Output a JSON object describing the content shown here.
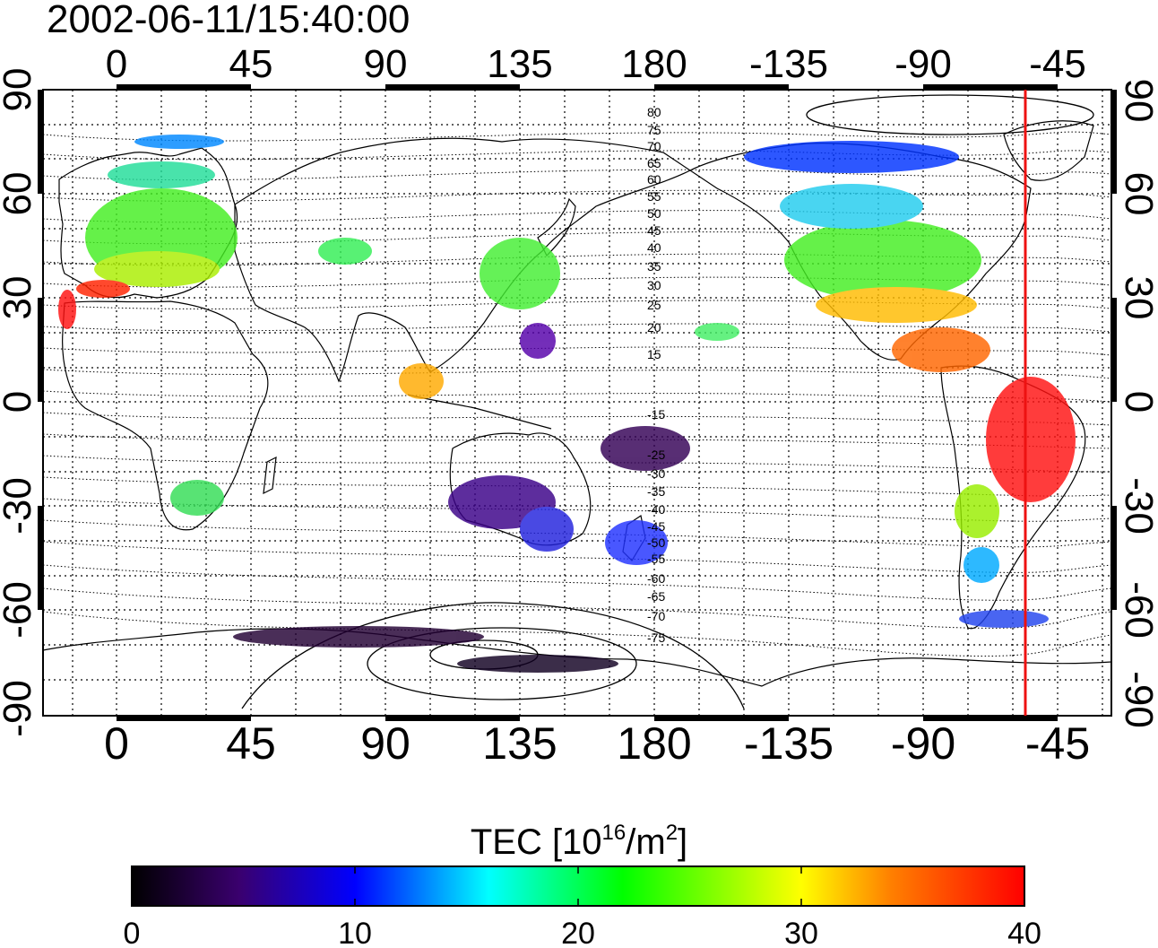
{
  "timestamp": "2002-06-11/15:40:00",
  "map": {
    "lon_ticks_top": [
      "0",
      "45",
      "90",
      "135",
      "180",
      "-135",
      "-90",
      "-45"
    ],
    "lon_ticks_bottom": [
      "0",
      "45",
      "90",
      "135",
      "180",
      "-135",
      "-90",
      "-45"
    ],
    "lat_ticks_left": [
      "90",
      "60",
      "30",
      "0",
      "-30",
      "-60",
      "-90"
    ],
    "lat_ticks_right": [
      "90",
      "60",
      "30",
      "0",
      "-30",
      "-60",
      "-90"
    ],
    "contour_labels": [
      "80",
      "75",
      "70",
      "65",
      "60",
      "55",
      "50",
      "45",
      "40",
      "35",
      "30",
      "25",
      "20",
      "15",
      "-15",
      "-25",
      "-30",
      "-35",
      "-40",
      "-45",
      "-50",
      "-55",
      "-60",
      "-65",
      "-70",
      "-75"
    ],
    "terminator_color": "#ee1111",
    "grid": true
  },
  "colorbar": {
    "title_prefix": "TEC  [10",
    "title_sup1": "16",
    "title_mid": "/m",
    "title_sup2": "2",
    "title_suffix": "]",
    "ticks": [
      "0",
      "10",
      "20",
      "30",
      "40"
    ],
    "range": [
      0,
      40
    ],
    "colors": [
      "#000000",
      "#3a006e",
      "#0000ff",
      "#00ffff",
      "#00ff00",
      "#ffff00",
      "#ff8000",
      "#ff0000"
    ]
  }
}
